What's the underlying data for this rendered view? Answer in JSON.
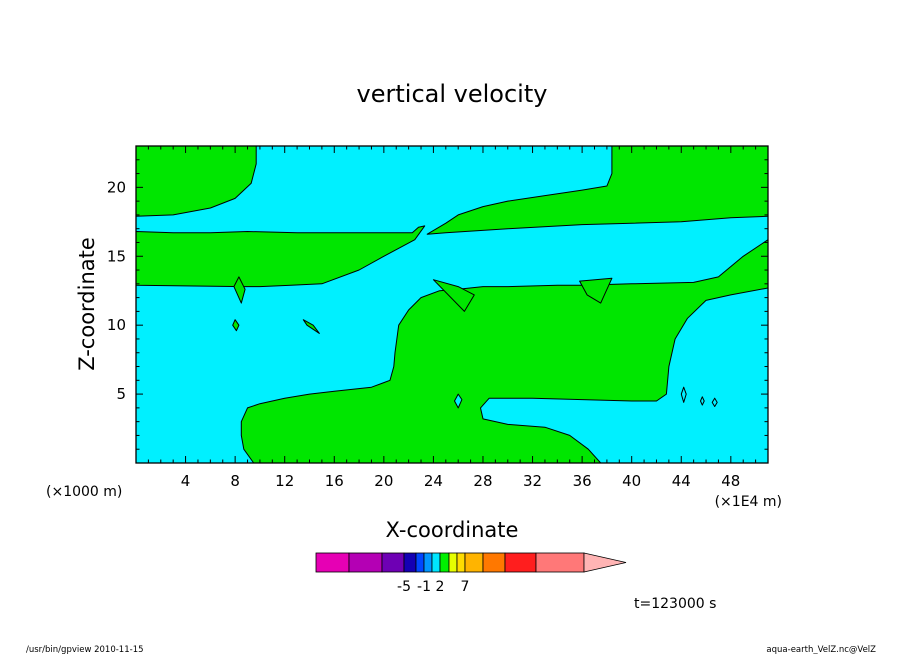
{
  "chart_data": {
    "type": "contour",
    "title": "vertical velocity",
    "xlabel": "X-coordinate",
    "ylabel": "Z-coordinate",
    "x_unit_left": "(×1000 m)",
    "x_unit_right": "(×1E4 m)",
    "xlim": [
      0,
      51
    ],
    "ylim": [
      0,
      23
    ],
    "x_ticks": [
      4,
      8,
      12,
      16,
      20,
      24,
      28,
      32,
      36,
      40,
      44,
      48
    ],
    "y_ticks": [
      5,
      10,
      15,
      20
    ],
    "time_label": "t=123000 s",
    "colorbar": {
      "colors": [
        "#e600b4",
        "#b400b4",
        "#6e00b4",
        "#1400b4",
        "#0046ff",
        "#0096ff",
        "#00e6ff",
        "#00f000",
        "#e6ff00",
        "#ffdc00",
        "#ffb400",
        "#ff7800",
        "#ff1e1e",
        "#ff7878",
        "#ffb4b4"
      ],
      "tick_labels": [
        {
          "label": "-5",
          "boundary": 3
        },
        {
          "label": "-1",
          "boundary": 5
        },
        {
          "label": "2",
          "boundary": 7
        },
        {
          "label": "7",
          "boundary": 10
        }
      ]
    },
    "fill_colors": {
      "negative": "#00f0ff",
      "positive": "#00e600"
    },
    "positive_regions": [
      {
        "name": "upper-left-block",
        "points": [
          [
            0,
            23
          ],
          [
            9.7,
            23
          ],
          [
            9.7,
            21.7
          ],
          [
            9.3,
            20.3
          ],
          [
            8,
            19.2
          ],
          [
            6,
            18.5
          ],
          [
            3,
            18
          ],
          [
            0,
            17.9
          ]
        ]
      },
      {
        "name": "upper-right-block",
        "points": [
          [
            38.4,
            23
          ],
          [
            51,
            23
          ],
          [
            51,
            17.9
          ],
          [
            48,
            17.8
          ],
          [
            44,
            17.5
          ],
          [
            40,
            17.4
          ],
          [
            36,
            17.3
          ],
          [
            30,
            17
          ],
          [
            25,
            16.7
          ],
          [
            23.5,
            16.6
          ],
          [
            25,
            17.4
          ],
          [
            26,
            18
          ],
          [
            28,
            18.6
          ],
          [
            30,
            19
          ],
          [
            33,
            19.4
          ],
          [
            36,
            19.8
          ],
          [
            38,
            20.1
          ],
          [
            38.4,
            21
          ]
        ]
      },
      {
        "name": "mid-left-band",
        "points": [
          [
            0,
            16.8
          ],
          [
            3,
            16.7
          ],
          [
            6,
            16.7
          ],
          [
            9,
            16.8
          ],
          [
            13,
            16.7
          ],
          [
            18,
            16.7
          ],
          [
            22.3,
            16.7
          ],
          [
            22.8,
            17.1
          ],
          [
            23.3,
            17.2
          ],
          [
            22.5,
            16.2
          ],
          [
            20,
            15
          ],
          [
            18,
            14
          ],
          [
            15,
            13
          ],
          [
            12.5,
            12.9
          ],
          [
            10,
            12.8
          ],
          [
            8.6,
            12.8
          ],
          [
            0,
            12.9
          ]
        ]
      },
      {
        "name": "lower-main-region",
        "points": [
          [
            9.5,
            0
          ],
          [
            8.7,
            1
          ],
          [
            8.5,
            2
          ],
          [
            8.5,
            3
          ],
          [
            9,
            4
          ],
          [
            10,
            4.3
          ],
          [
            12,
            4.7
          ],
          [
            14,
            5
          ],
          [
            16,
            5.2
          ],
          [
            19,
            5.5
          ],
          [
            20.5,
            6
          ],
          [
            20.8,
            7
          ],
          [
            20.9,
            8
          ],
          [
            21.2,
            10
          ],
          [
            22,
            11.1
          ],
          [
            23,
            12
          ],
          [
            24.5,
            12.5
          ],
          [
            26,
            12.6
          ],
          [
            28,
            12.8
          ],
          [
            30,
            12.8
          ],
          [
            34,
            12.9
          ],
          [
            36,
            12.9
          ],
          [
            40,
            13
          ],
          [
            45,
            13.1
          ],
          [
            47,
            13.5
          ],
          [
            49,
            15
          ],
          [
            51,
            16.2
          ],
          [
            51,
            12.7
          ],
          [
            48,
            12.2
          ],
          [
            46,
            11.8
          ],
          [
            44.5,
            10.5
          ],
          [
            43.5,
            9
          ],
          [
            43,
            7
          ],
          [
            42.8,
            5
          ],
          [
            42,
            4.5
          ],
          [
            40,
            4.5
          ],
          [
            36,
            4.6
          ],
          [
            32,
            4.7
          ],
          [
            28.5,
            4.7
          ],
          [
            27.8,
            4
          ],
          [
            28,
            3.2
          ],
          [
            30,
            2.8
          ],
          [
            33,
            2.6
          ],
          [
            35,
            2
          ],
          [
            36.5,
            1
          ],
          [
            37.5,
            0
          ]
        ]
      },
      {
        "name": "spike-a",
        "points": [
          [
            8.3,
            13.5
          ],
          [
            8.8,
            12.6
          ],
          [
            8.5,
            11.6
          ],
          [
            7.9,
            12.8
          ]
        ]
      },
      {
        "name": "spike-b",
        "points": [
          [
            35.8,
            13.2
          ],
          [
            38.4,
            13.4
          ],
          [
            37.5,
            11.6
          ],
          [
            36.4,
            12.2
          ]
        ]
      },
      {
        "name": "spike-c",
        "points": [
          [
            24,
            13.3
          ],
          [
            26,
            12.8
          ],
          [
            27.3,
            12.2
          ],
          [
            26.5,
            11
          ]
        ]
      },
      {
        "name": "blob-1",
        "points": [
          [
            13.5,
            10.4
          ],
          [
            14.3,
            10
          ],
          [
            14.8,
            9.4
          ],
          [
            13.8,
            10
          ]
        ]
      },
      {
        "name": "blob-2",
        "points": [
          [
            8,
            10.4
          ],
          [
            8.3,
            10
          ],
          [
            8.1,
            9.6
          ],
          [
            7.8,
            10
          ]
        ]
      }
    ],
    "negative_islands": [
      {
        "name": "tiny-gap-1",
        "points": [
          [
            26,
            5
          ],
          [
            26.3,
            4.6
          ],
          [
            26,
            4
          ],
          [
            25.7,
            4.5
          ]
        ]
      },
      {
        "name": "tiny-gap-2",
        "points": [
          [
            44.2,
            5.5
          ],
          [
            44.4,
            5
          ],
          [
            44.2,
            4.4
          ],
          [
            44,
            5
          ]
        ]
      },
      {
        "name": "tiny-gap-3",
        "points": [
          [
            45.7,
            4.8
          ],
          [
            45.85,
            4.5
          ],
          [
            45.7,
            4.2
          ],
          [
            45.55,
            4.5
          ]
        ]
      },
      {
        "name": "tiny-gap-4",
        "points": [
          [
            46.7,
            4.7
          ],
          [
            46.9,
            4.4
          ],
          [
            46.7,
            4.1
          ],
          [
            46.5,
            4.4
          ]
        ]
      }
    ]
  },
  "footer": {
    "left": "/usr/bin/gpview   2010-11-15",
    "right": "aqua-earth_VelZ.nc@VelZ"
  }
}
